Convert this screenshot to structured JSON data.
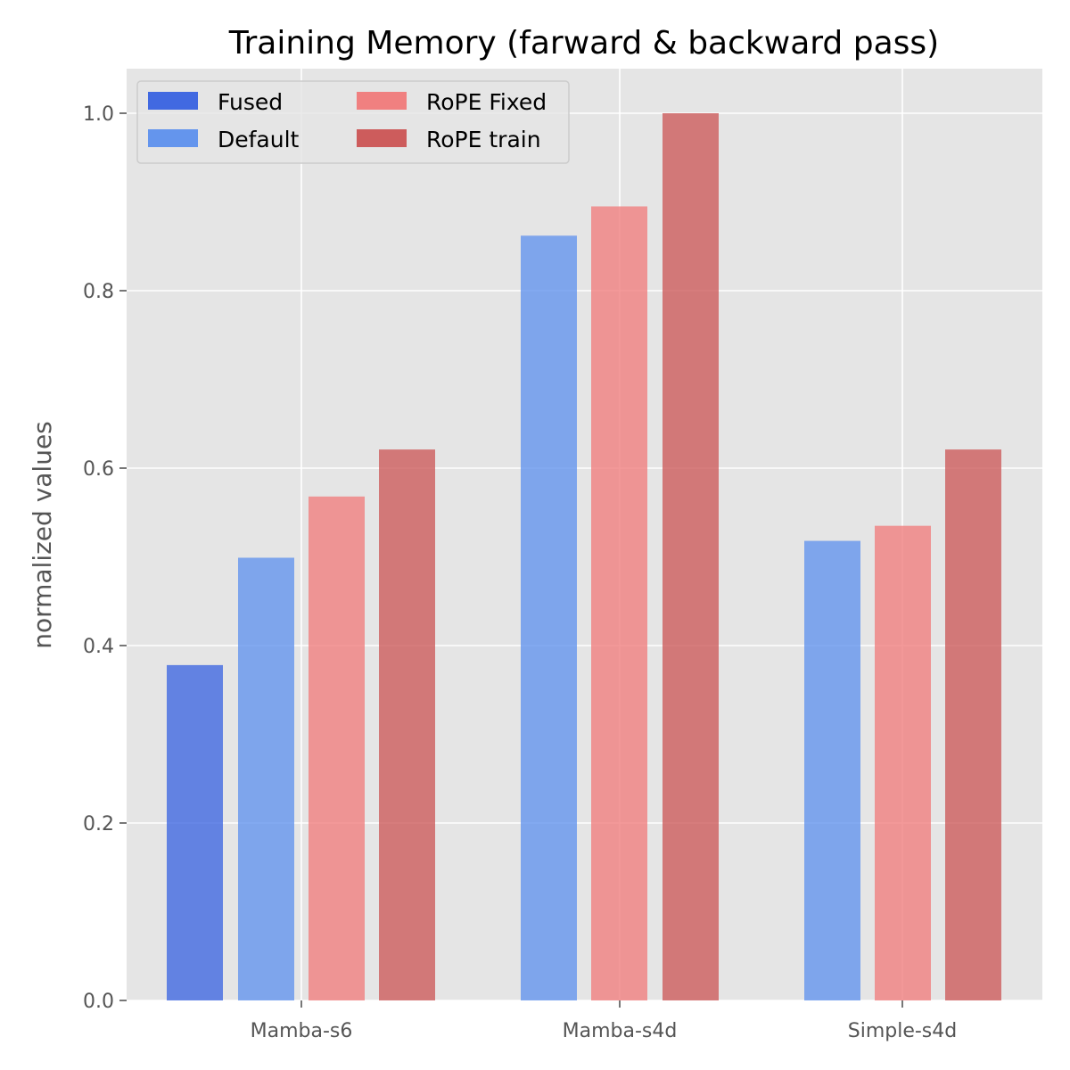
{
  "chart_data": {
    "type": "bar",
    "title": "Training Memory (farward & backward pass)",
    "xlabel": "",
    "ylabel": "normalized values",
    "ylim": [
      0,
      1.05
    ],
    "yticks": [
      "0.0",
      "0.2",
      "0.4",
      "0.6",
      "0.8",
      "1.0"
    ],
    "ytick_values": [
      0,
      0.2,
      0.4,
      0.6,
      0.8,
      1.0
    ],
    "categories": [
      "Mamba-s6",
      "Mamba-s4d",
      "Simple-s4d"
    ],
    "grid": true,
    "legend_position": "top-left",
    "series": [
      {
        "name": "Fused",
        "color": "#4169E1",
        "values": [
          0.378,
          null,
          null
        ]
      },
      {
        "name": "Default",
        "color": "#6495ED",
        "values": [
          0.499,
          0.862,
          0.518
        ]
      },
      {
        "name": "RoPE Fixed",
        "color": "#F08080",
        "values": [
          0.568,
          0.895,
          0.535
        ]
      },
      {
        "name": "RoPE train",
        "color": "#CD5C5C",
        "values": [
          0.621,
          1.0,
          0.621
        ]
      }
    ]
  }
}
